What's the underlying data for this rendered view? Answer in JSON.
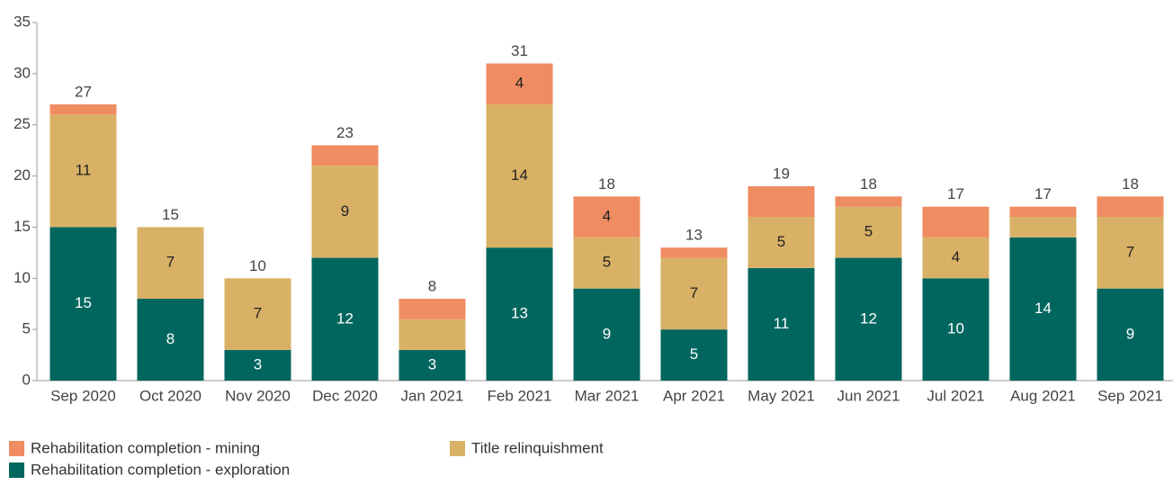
{
  "chart_data": {
    "type": "stacked_bar",
    "categories": [
      "Sep 2020",
      "Oct 2020",
      "Nov 2020",
      "Dec 2020",
      "Jan 2021",
      "Feb 2021",
      "Mar 2021",
      "Apr 2021",
      "May 2021",
      "Jun 2021",
      "Jul 2021",
      "Aug 2021",
      "Sep 2021"
    ],
    "series": [
      {
        "name": "Rehabilitation completion - exploration",
        "color": "#00665e",
        "values": [
          15,
          8,
          3,
          12,
          3,
          13,
          9,
          5,
          11,
          12,
          10,
          14,
          9
        ],
        "value_labels": [
          "15",
          "8",
          "3",
          "12",
          "3",
          "13",
          "9",
          "5",
          "11",
          "12",
          "10",
          "14",
          "9"
        ]
      },
      {
        "name": "Title relinquishment",
        "color": "#d9b166",
        "values": [
          11,
          7,
          7,
          9,
          3,
          14,
          5,
          7,
          5,
          5,
          4,
          2,
          7
        ],
        "value_labels": [
          "11",
          "7",
          "7",
          "9",
          null,
          "14",
          "5",
          "7",
          "5",
          "5",
          "4",
          null,
          "7"
        ]
      },
      {
        "name": "Rehabilitation completion - mining",
        "color": "#ef8c62",
        "values": [
          1,
          0,
          0,
          2,
          2,
          4,
          4,
          1,
          3,
          1,
          3,
          1,
          2
        ],
        "value_labels": [
          null,
          null,
          null,
          null,
          null,
          "4",
          "4",
          null,
          null,
          null,
          null,
          null,
          null
        ]
      }
    ],
    "totals": [
      27,
      15,
      10,
      23,
      8,
      31,
      18,
      13,
      19,
      18,
      17,
      17,
      18
    ],
    "ylim": [
      0,
      35
    ],
    "yticks": [
      0,
      5,
      10,
      15,
      20,
      25,
      30,
      35
    ],
    "grid": false
  }
}
